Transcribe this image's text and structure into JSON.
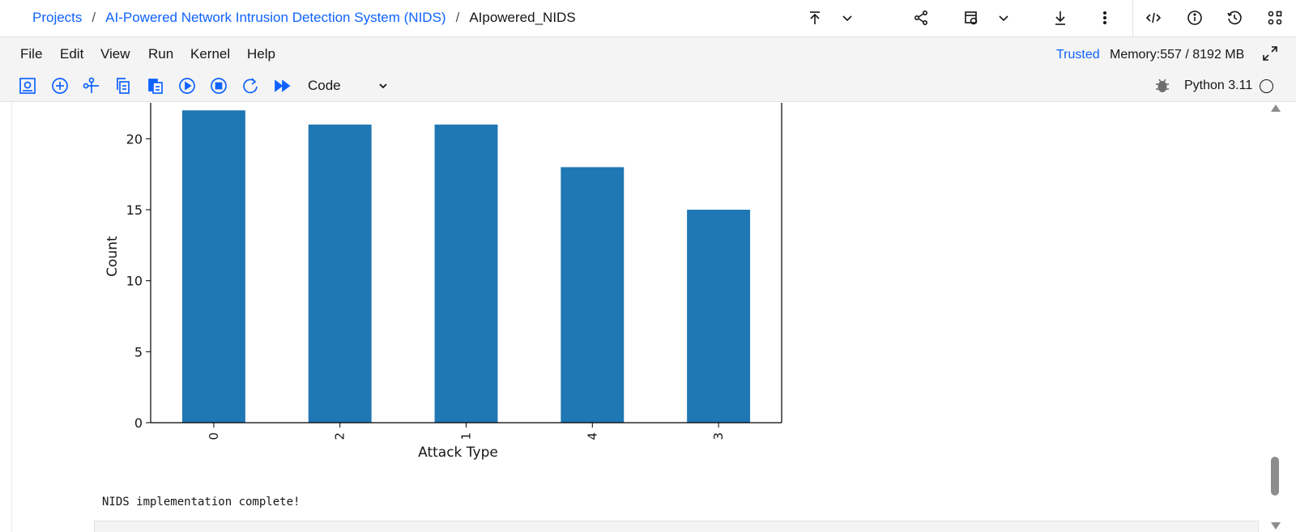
{
  "breadcrumb": {
    "projects": "Projects",
    "project": "AI-Powered Network Intrusion Detection System (NIDS)",
    "notebook": "AIpowered_NIDS",
    "separator": "/"
  },
  "header_icons": [
    "upload-icon",
    "chevron-down-icon",
    "share-icon",
    "schedule-icon",
    "chevron-down-icon",
    "download-icon",
    "overflow-menu-icon",
    "code-icon",
    "info-icon",
    "history-icon",
    "apps-icon"
  ],
  "menu": {
    "items": [
      "File",
      "Edit",
      "View",
      "Run",
      "Kernel",
      "Help"
    ],
    "trusted": "Trusted",
    "memory": "Memory:557 / 8192 MB"
  },
  "toolbar": {
    "cell_type": "Code",
    "kernel": "Python 3.11"
  },
  "colors": {
    "accent": "#0f62fe",
    "bar": "#1f77b4"
  },
  "chart_data": {
    "type": "bar",
    "categories": [
      "0",
      "2",
      "1",
      "4",
      "3"
    ],
    "values": [
      22,
      21,
      21,
      18,
      15
    ],
    "xlabel": "Attack Type",
    "ylabel": "Count",
    "yticks": [
      0,
      5,
      10,
      15,
      20
    ],
    "ylim": [
      0,
      23.1
    ],
    "grid": false
  },
  "output": {
    "text": "NIDS implementation complete!"
  }
}
